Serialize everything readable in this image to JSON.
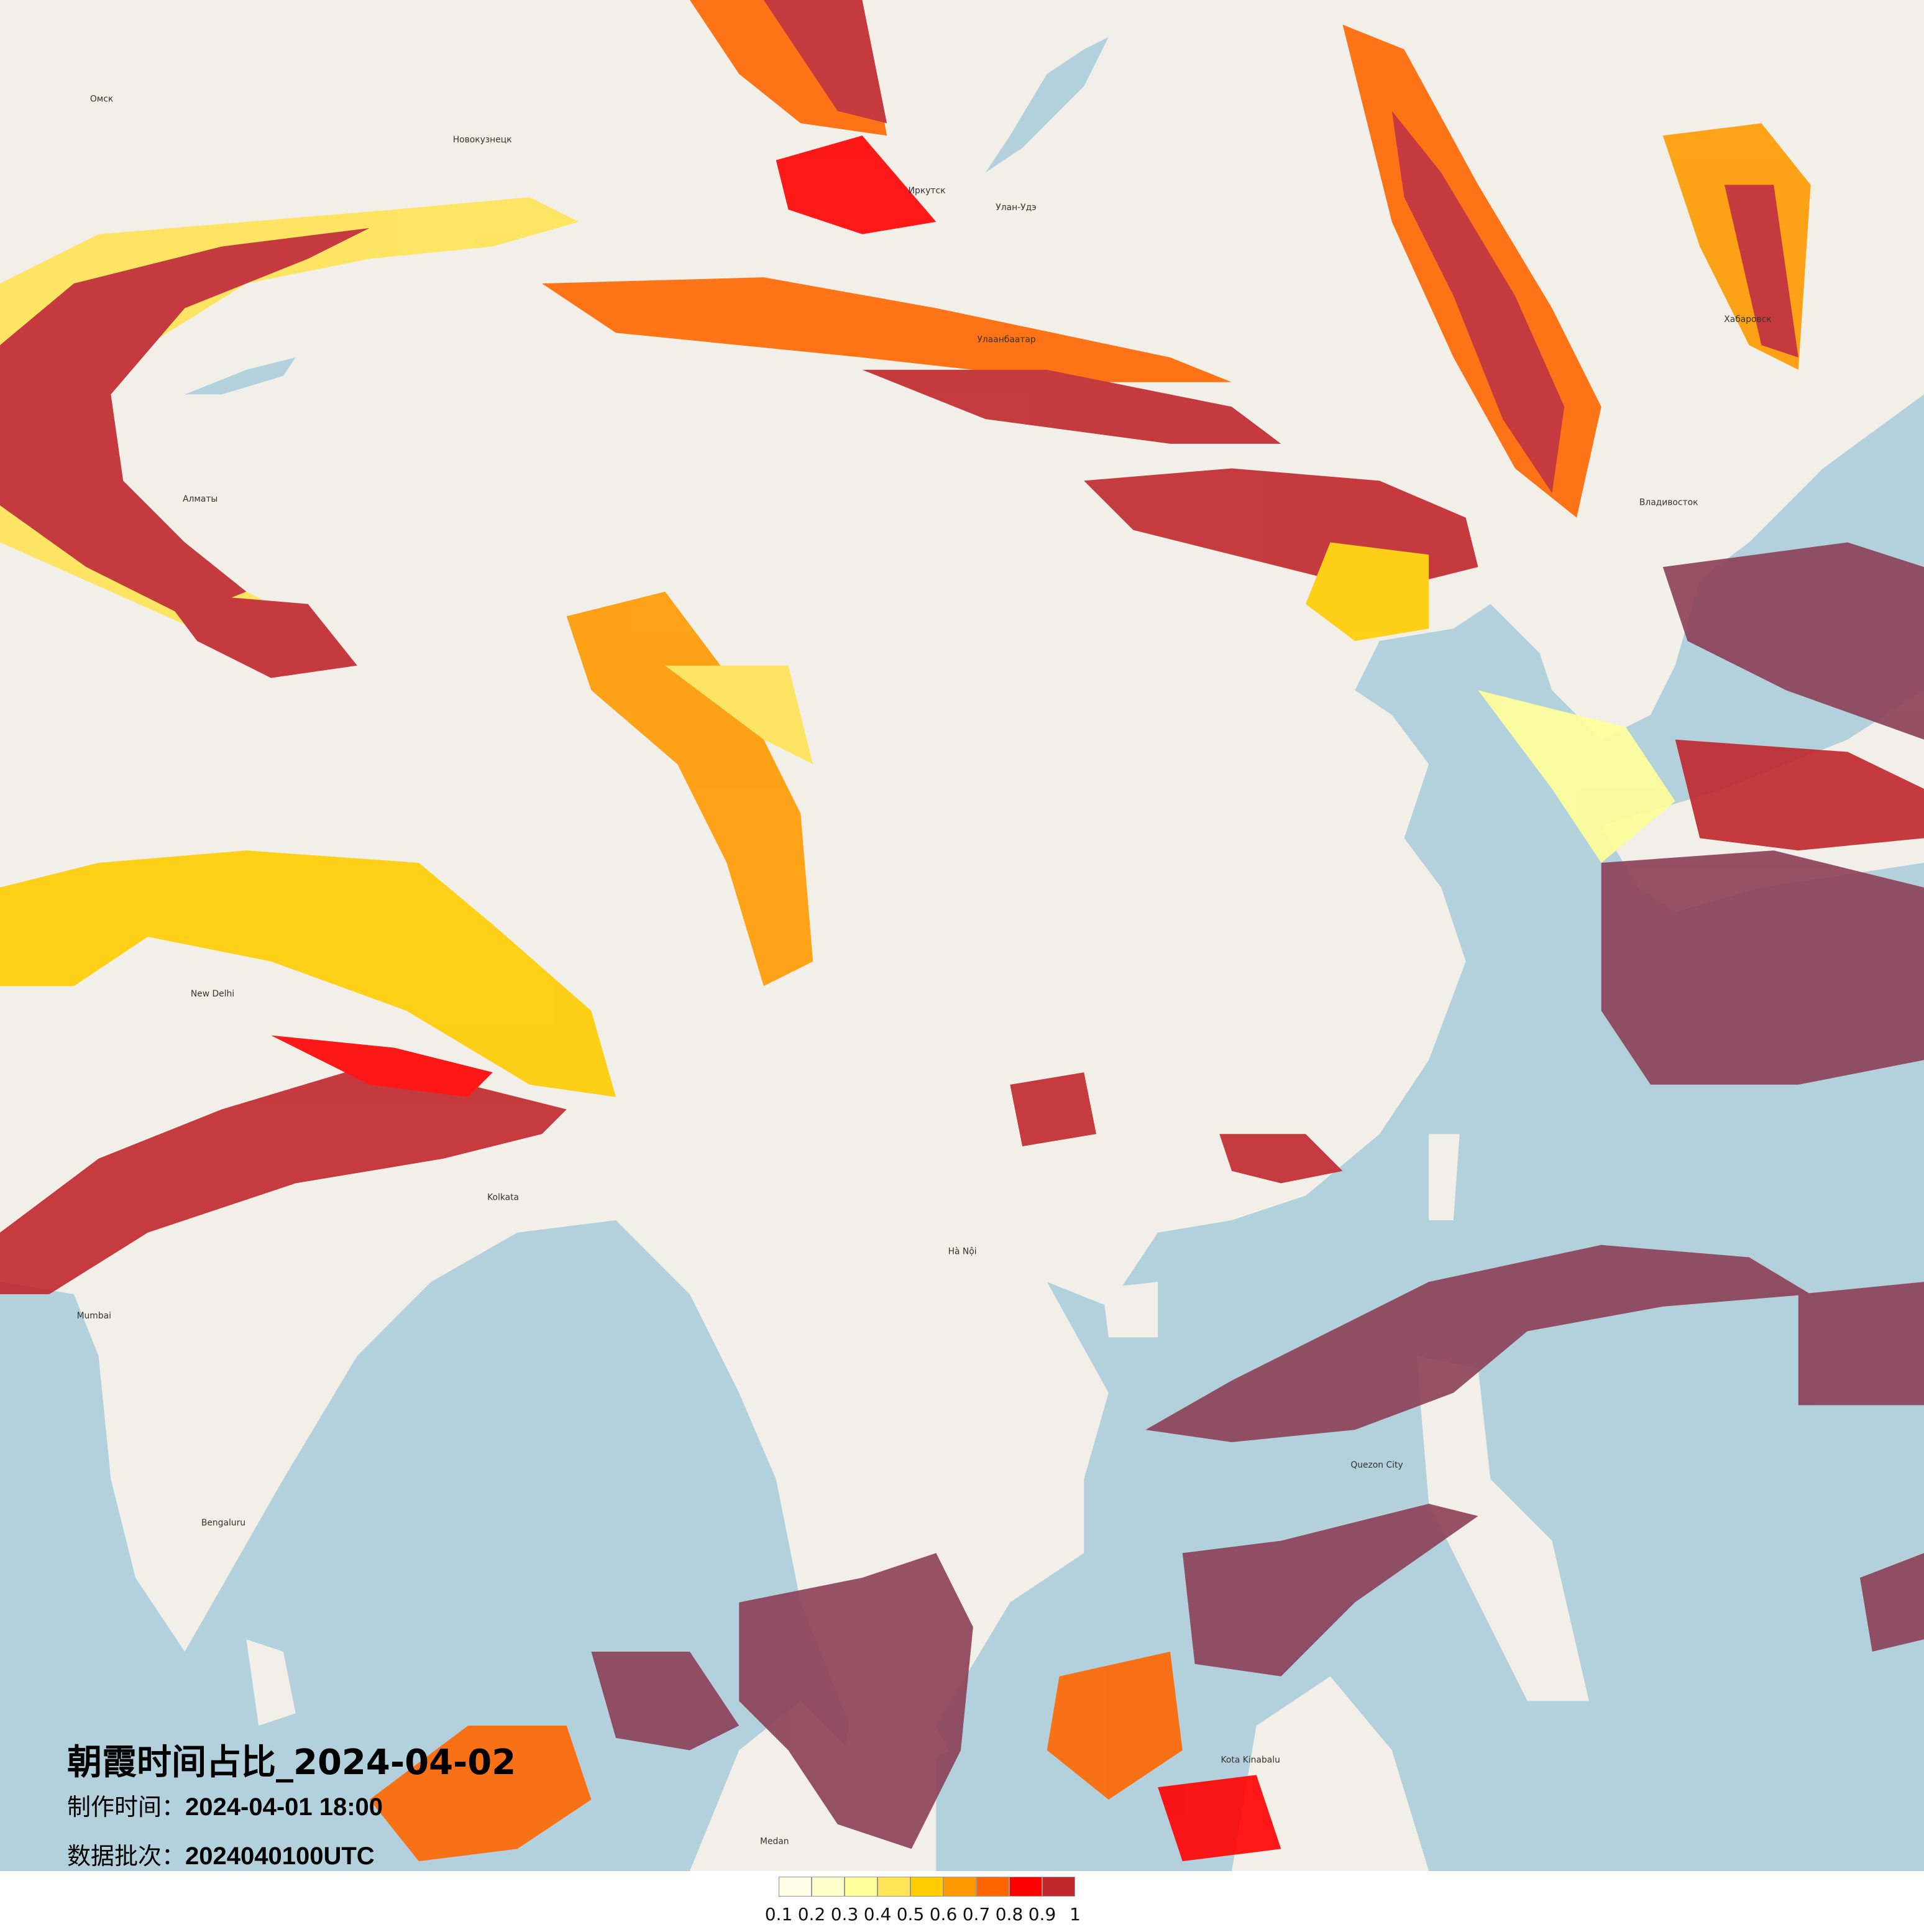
{
  "title": "朝霞时间占比_2024-04-02",
  "made_time_label": "制作时间：",
  "made_time_value": "2024-04-01 18:00",
  "batch_label": "数据批次：",
  "batch_value": "2024040100UTC",
  "legend": {
    "colors": [
      "#fffde6",
      "#ffffcc",
      "#ffff99",
      "#ffe455",
      "#ffcc00",
      "#ff9900",
      "#ff6600",
      "#ff0000",
      "#c1272d"
    ],
    "ticks": [
      "0.1",
      "0.2",
      "0.3",
      "0.4",
      "0.5",
      "0.6",
      "0.7",
      "0.8",
      "0.9",
      "1"
    ]
  },
  "map_colors": {
    "land": "#f2efe9",
    "sea": "#b3d1dc",
    "overlay_over_sea": "#8c3f58"
  },
  "places": [
    {
      "name": "Омск",
      "lon_lat": [
        73.4,
        55.0
      ]
    },
    {
      "name": "Новокузнецк",
      "lon_lat": [
        87.1,
        53.8
      ]
    },
    {
      "name": "Иркутск",
      "lon_lat": [
        104.3,
        52.3
      ]
    },
    {
      "name": "Улан-Удэ",
      "lon_lat": [
        107.6,
        51.8
      ]
    },
    {
      "name": "Хабаровск",
      "lon_lat": [
        135.1,
        48.5
      ]
    },
    {
      "name": "Алматы",
      "lon_lat": [
        76.9,
        43.2
      ]
    },
    {
      "name": "Улаанбаатар",
      "lon_lat": [
        106.9,
        47.9
      ]
    },
    {
      "name": "Владивосток",
      "lon_lat": [
        131.9,
        43.1
      ]
    },
    {
      "name": "New Delhi",
      "lon_lat": [
        77.2,
        28.6
      ]
    },
    {
      "name": "Kolkata",
      "lon_lat": [
        88.4,
        22.6
      ]
    },
    {
      "name": "Mumbai",
      "lon_lat": [
        72.9,
        19.1
      ]
    },
    {
      "name": "Bengaluru",
      "lon_lat": [
        77.6,
        13.0
      ]
    },
    {
      "name": "Hà Nội",
      "lon_lat": [
        105.8,
        21.0
      ]
    },
    {
      "name": "Quezon City",
      "lon_lat": [
        121.0,
        14.7
      ]
    },
    {
      "name": "Kota Kinabalu",
      "lon_lat": [
        116.1,
        6.0
      ]
    },
    {
      "name": "Medan",
      "lon_lat": [
        98.7,
        3.6
      ]
    }
  ]
}
